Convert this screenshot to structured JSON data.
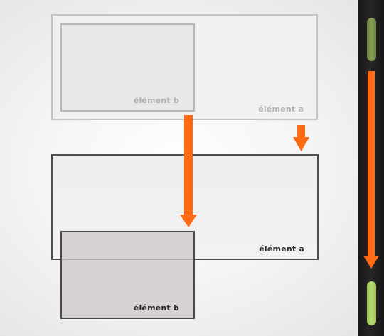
{
  "diagram": {
    "before": {
      "element_a_label": "élément a",
      "element_b_label": "élément b"
    },
    "after": {
      "element_a_label": "élément a",
      "element_b_label": "élément b"
    }
  },
  "colors": {
    "arrow": "#ff6a13",
    "scroll_thumb_before": "#86a052",
    "scroll_thumb_after": "#b5dc6c",
    "scroll_track": "#1e1e1e"
  }
}
